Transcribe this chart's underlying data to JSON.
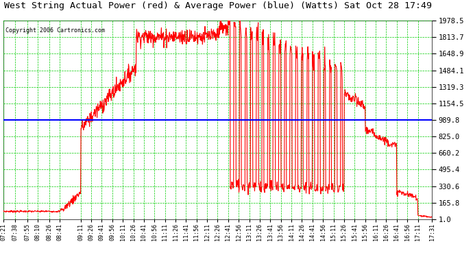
{
  "title": "West String Actual Power (red) & Average Power (blue) (Watts) Sat Oct 28 17:49",
  "copyright": "Copyright 2006 Cartronics.com",
  "yticks": [
    1.0,
    165.8,
    330.6,
    495.4,
    660.2,
    825.0,
    989.8,
    1154.5,
    1319.3,
    1484.1,
    1648.9,
    1813.7,
    1978.5
  ],
  "ymin": 1.0,
  "ymax": 1978.5,
  "average_power": 989.8,
  "avg_line_color": "#0000ff",
  "plot_bg": "#ffffff",
  "fig_bg": "#ffffff",
  "grid_color": "#00cc00",
  "line_color": "#ff0000",
  "time_labels": [
    "07:21",
    "07:38",
    "07:55",
    "08:10",
    "08:26",
    "08:41",
    "09:11",
    "09:26",
    "09:41",
    "09:56",
    "10:11",
    "10:26",
    "10:41",
    "10:56",
    "11:11",
    "11:26",
    "11:41",
    "11:56",
    "12:11",
    "12:26",
    "12:41",
    "12:56",
    "13:11",
    "13:26",
    "13:41",
    "13:56",
    "14:11",
    "14:26",
    "14:41",
    "14:56",
    "15:11",
    "15:26",
    "15:41",
    "15:56",
    "16:11",
    "16:26",
    "16:41",
    "16:56",
    "17:11",
    "17:31"
  ]
}
